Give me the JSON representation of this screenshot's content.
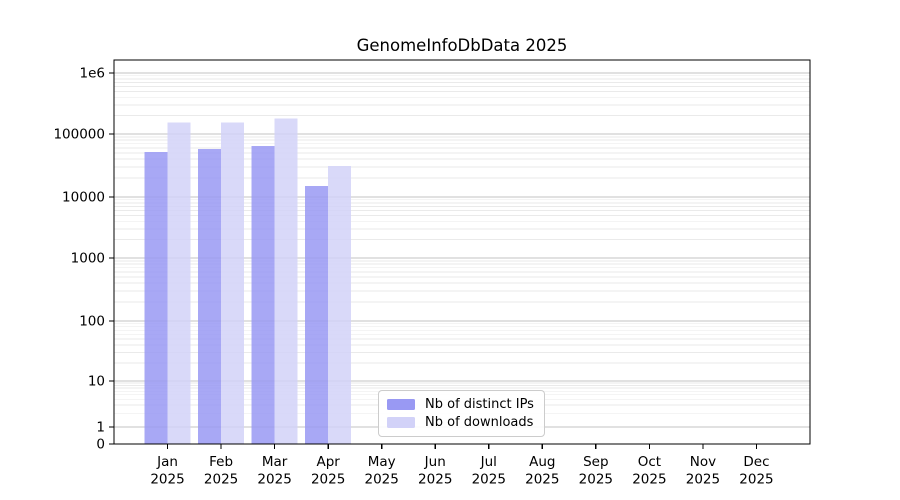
{
  "title": "GenomeInfoDbData 2025",
  "colors": {
    "distinct_ips": "#9999f3",
    "downloads": "#d2d2f8",
    "bar_opacity": "0.85",
    "grid_major": "#c3c3c3",
    "grid_minor": "#eaeaea",
    "axis": "#000000",
    "legend_border": "#cccccc",
    "background": "#ffffff"
  },
  "legend": {
    "items": [
      {
        "label": "Nb of distinct IPs",
        "color_key": "distinct_ips"
      },
      {
        "label": "Nb of downloads",
        "color_key": "downloads"
      }
    ]
  },
  "y_axis": {
    "ticks": [
      {
        "label": "0",
        "value": 0
      },
      {
        "label": "1",
        "value": 1
      },
      {
        "label": "10",
        "value": 10
      },
      {
        "label": "100",
        "value": 100
      },
      {
        "label": "1000",
        "value": 1000
      },
      {
        "label": "10000",
        "value": 10000
      },
      {
        "label": "100000",
        "value": 100000
      },
      {
        "label": "1e6",
        "value": 1000000
      }
    ]
  },
  "x_axis": {
    "year": "2025",
    "months": [
      "Jan",
      "Feb",
      "Mar",
      "Apr",
      "May",
      "Jun",
      "Jul",
      "Aug",
      "Sep",
      "Oct",
      "Nov",
      "Dec"
    ]
  },
  "chart_data": {
    "type": "bar",
    "title": "GenomeInfoDbData 2025",
    "categories": [
      "Jan 2025",
      "Feb 2025",
      "Mar 2025",
      "Apr 2025",
      "May 2025",
      "Jun 2025",
      "Jul 2025",
      "Aug 2025",
      "Sep 2025",
      "Oct 2025",
      "Nov 2025",
      "Dec 2025"
    ],
    "series": [
      {
        "name": "Nb of distinct IPs",
        "color_key": "distinct_ips",
        "values": [
          52000,
          58000,
          64000,
          15000,
          null,
          null,
          null,
          null,
          null,
          null,
          null,
          null
        ]
      },
      {
        "name": "Nb of downloads",
        "color_key": "downloads",
        "values": [
          153000,
          153000,
          180000,
          31000,
          null,
          null,
          null,
          null,
          null,
          null,
          null,
          null
        ]
      }
    ],
    "yscale": "log with zero baseline",
    "ylim": [
      "0",
      "2e6"
    ],
    "grid": "horizontal major + minor gridlines",
    "legend_position": "lower center"
  }
}
